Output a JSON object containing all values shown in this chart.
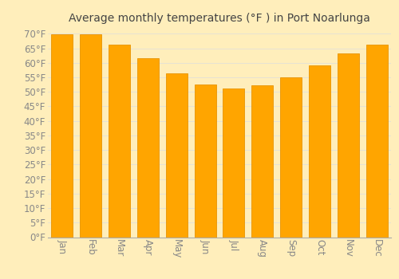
{
  "title": "Average monthly temperatures (°F ) in Port Noarlunga",
  "months": [
    "Jan",
    "Feb",
    "Mar",
    "Apr",
    "May",
    "Jun",
    "Jul",
    "Aug",
    "Sep",
    "Oct",
    "Nov",
    "Dec"
  ],
  "values": [
    69.8,
    69.8,
    66.2,
    61.5,
    56.3,
    52.5,
    51.1,
    52.3,
    55.0,
    59.0,
    63.1,
    66.2
  ],
  "bar_color_face": "#FFA500",
  "bar_color_edge": "#E89400",
  "background_color": "#FFEEBB",
  "grid_color": "#DDDDDD",
  "title_color": "#444444",
  "tick_label_color": "#888888",
  "ylim": [
    0,
    72
  ],
  "ytick_values": [
    0,
    5,
    10,
    15,
    20,
    25,
    30,
    35,
    40,
    45,
    50,
    55,
    60,
    65,
    70
  ],
  "title_fontsize": 10,
  "tick_fontsize": 8.5
}
